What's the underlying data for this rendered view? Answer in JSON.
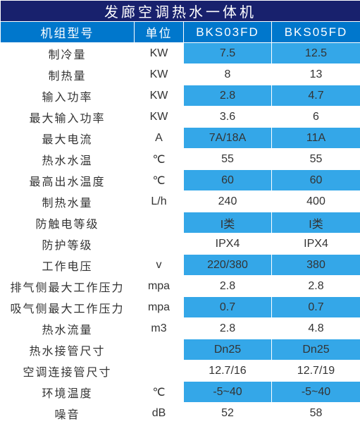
{
  "title": "发廊空调热水一体机",
  "header": {
    "model": "机组型号",
    "unit": "单位",
    "v1": "BKS03FD",
    "v2": "BKS05FD"
  },
  "colors": {
    "title_bg": "#18216d",
    "header_bg": "#0077cc",
    "cell_blue": "#34a7e8",
    "cell_white": "#ffffff",
    "border": "#ffffff",
    "text_light": "#ffffff",
    "text_dark": "#333333"
  },
  "rows": [
    {
      "label": "制冷量",
      "unit": "KW",
      "v1": "7.5",
      "v2": "12.5",
      "highlight": true
    },
    {
      "label": "制热量",
      "unit": "KW",
      "v1": "8",
      "v2": "13",
      "highlight": false
    },
    {
      "label": "输入功率",
      "unit": "KW",
      "v1": "2.8",
      "v2": "4.7",
      "highlight": true
    },
    {
      "label": "最大输入功率",
      "unit": "KW",
      "v1": "3.6",
      "v2": "6",
      "highlight": false
    },
    {
      "label": "最大电流",
      "unit": "A",
      "v1": "7A/18A",
      "v2": "11A",
      "highlight": true
    },
    {
      "label": "热水水温",
      "unit": "℃",
      "v1": "55",
      "v2": "55",
      "highlight": false
    },
    {
      "label": "最高出水温度",
      "unit": "℃",
      "v1": "60",
      "v2": "60",
      "highlight": true
    },
    {
      "label": "制热水量",
      "unit": "L/h",
      "v1": "240",
      "v2": "400",
      "highlight": false
    },
    {
      "label": "防触电等级",
      "unit": "",
      "v1": "I类",
      "v2": "I类",
      "highlight": true
    },
    {
      "label": "防护等级",
      "unit": "",
      "v1": "IPX4",
      "v2": "IPX4",
      "highlight": false
    },
    {
      "label": "工作电压",
      "unit": "v",
      "v1": "220/380",
      "v2": "380",
      "highlight": true
    },
    {
      "label": "排气侧最大工作压力",
      "unit": "mpa",
      "v1": "2.8",
      "v2": "2.8",
      "highlight": false
    },
    {
      "label": "吸气侧最大工作压力",
      "unit": "mpa",
      "v1": "0.7",
      "v2": "0.7",
      "highlight": true
    },
    {
      "label": "热水流量",
      "unit": "m3",
      "v1": "2.8",
      "v2": "4.8",
      "highlight": false
    },
    {
      "label": "热水接管尺寸",
      "unit": "",
      "v1": "Dn25",
      "v2": "Dn25",
      "highlight": true
    },
    {
      "label": "空调连接管尺寸",
      "unit": "",
      "v1": "12.7/16",
      "v2": "12.7/19",
      "highlight": false
    },
    {
      "label": "环境温度",
      "unit": "℃",
      "v1": "-5~40",
      "v2": "-5~40",
      "highlight": true
    },
    {
      "label": "噪音",
      "unit": "dB",
      "v1": "52",
      "v2": "58",
      "highlight": false
    }
  ]
}
